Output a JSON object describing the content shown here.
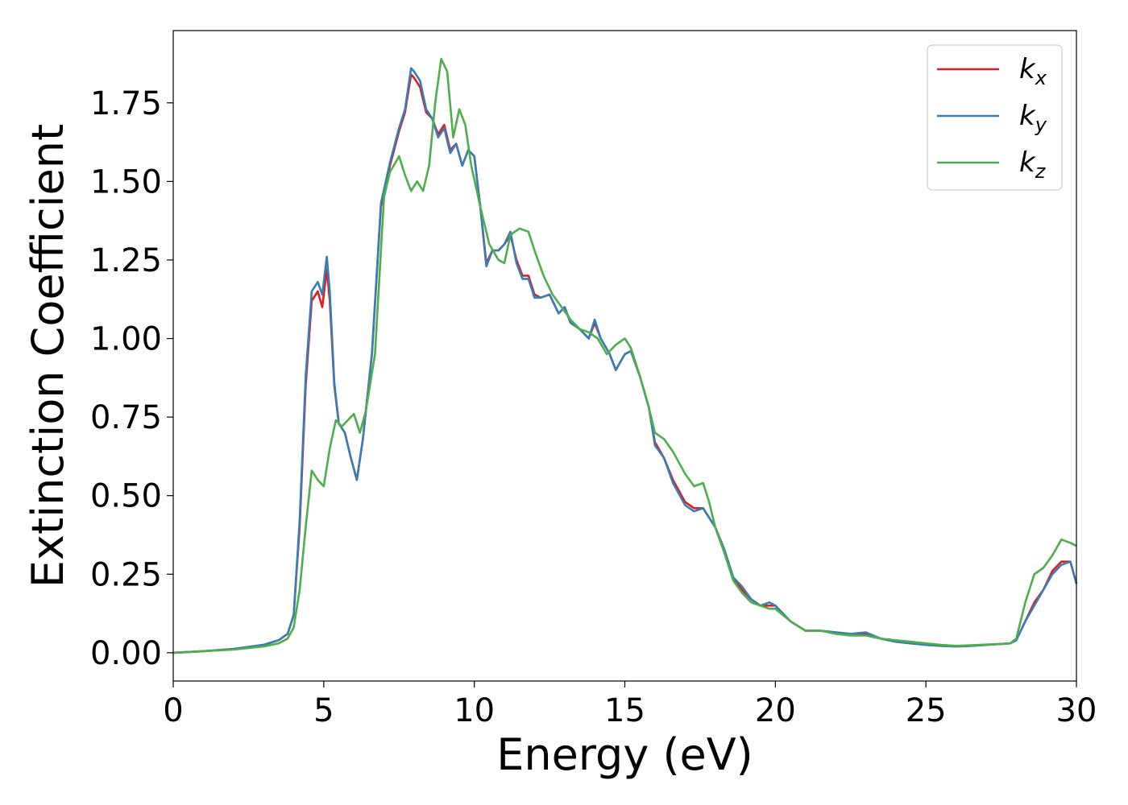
{
  "chart_data": {
    "type": "line",
    "xlabel": "Energy (eV)",
    "ylabel": "Extinction Coefficient",
    "xlim": [
      0,
      30
    ],
    "ylim": [
      -0.09,
      1.98
    ],
    "xticks": [
      "0",
      "5",
      "10",
      "15",
      "20",
      "25",
      "30"
    ],
    "yticks": [
      "0.00",
      "0.25",
      "0.50",
      "0.75",
      "1.00",
      "1.25",
      "1.50",
      "1.75"
    ],
    "grid": false,
    "legend_position": "top-right",
    "series": [
      {
        "name": "k_x",
        "label_main": "k",
        "label_sub": "x",
        "color": "#e41a1c",
        "x": [
          0,
          1,
          2,
          3,
          3.5,
          3.8,
          4.0,
          4.2,
          4.4,
          4.6,
          4.8,
          4.95,
          5.1,
          5.2,
          5.35,
          5.5,
          5.7,
          5.9,
          6.1,
          6.3,
          6.6,
          6.9,
          7.2,
          7.5,
          7.7,
          7.9,
          8.0,
          8.2,
          8.4,
          8.6,
          8.8,
          9.0,
          9.2,
          9.4,
          9.6,
          9.8,
          10.0,
          10.2,
          10.4,
          10.6,
          10.8,
          11.0,
          11.2,
          11.4,
          11.6,
          11.8,
          12.0,
          12.2,
          12.5,
          12.8,
          13.0,
          13.2,
          13.5,
          13.8,
          14.0,
          14.2,
          14.5,
          14.7,
          15.0,
          15.2,
          15.5,
          15.8,
          16.0,
          16.3,
          16.6,
          17.0,
          17.3,
          17.6,
          17.8,
          18.0,
          18.3,
          18.6,
          18.9,
          19.2,
          19.5,
          19.8,
          20.0,
          20.5,
          21.0,
          21.5,
          22.0,
          22.5,
          23.0,
          23.5,
          24.0,
          24.5,
          25.0,
          25.5,
          26.0,
          26.5,
          27.0,
          27.5,
          27.8,
          28.0,
          28.3,
          28.6,
          28.9,
          29.2,
          29.5,
          29.8,
          30.0
        ],
        "values": [
          0.0,
          0.005,
          0.012,
          0.025,
          0.04,
          0.06,
          0.12,
          0.4,
          0.85,
          1.12,
          1.15,
          1.1,
          1.22,
          1.12,
          0.85,
          0.73,
          0.7,
          0.62,
          0.55,
          0.68,
          0.95,
          1.42,
          1.55,
          1.66,
          1.72,
          1.84,
          1.83,
          1.8,
          1.72,
          1.7,
          1.65,
          1.68,
          1.6,
          1.62,
          1.55,
          1.6,
          1.58,
          1.42,
          1.24,
          1.28,
          1.28,
          1.3,
          1.33,
          1.25,
          1.2,
          1.2,
          1.14,
          1.13,
          1.14,
          1.08,
          1.1,
          1.05,
          1.03,
          1.0,
          1.05,
          1.0,
          0.95,
          0.9,
          0.95,
          0.96,
          0.88,
          0.78,
          0.67,
          0.62,
          0.55,
          0.48,
          0.46,
          0.46,
          0.43,
          0.4,
          0.33,
          0.24,
          0.2,
          0.17,
          0.15,
          0.15,
          0.15,
          0.1,
          0.07,
          0.07,
          0.065,
          0.06,
          0.06,
          0.045,
          0.035,
          0.03,
          0.025,
          0.022,
          0.02,
          0.022,
          0.025,
          0.028,
          0.03,
          0.04,
          0.1,
          0.16,
          0.2,
          0.26,
          0.29,
          0.29,
          0.22
        ]
      },
      {
        "name": "k_y",
        "label_main": "k",
        "label_sub": "y",
        "color": "#377eb8",
        "x": [
          0,
          1,
          2,
          3,
          3.5,
          3.8,
          4.0,
          4.2,
          4.4,
          4.6,
          4.8,
          4.95,
          5.1,
          5.2,
          5.35,
          5.5,
          5.7,
          5.9,
          6.1,
          6.3,
          6.6,
          6.9,
          7.2,
          7.5,
          7.7,
          7.9,
          8.0,
          8.2,
          8.4,
          8.6,
          8.8,
          9.0,
          9.2,
          9.4,
          9.6,
          9.8,
          10.0,
          10.2,
          10.4,
          10.6,
          10.8,
          11.0,
          11.2,
          11.4,
          11.6,
          11.8,
          12.0,
          12.2,
          12.5,
          12.8,
          13.0,
          13.2,
          13.5,
          13.8,
          14.0,
          14.2,
          14.5,
          14.7,
          15.0,
          15.2,
          15.5,
          15.8,
          16.0,
          16.3,
          16.6,
          17.0,
          17.3,
          17.6,
          17.8,
          18.0,
          18.3,
          18.6,
          18.9,
          19.2,
          19.5,
          19.8,
          20.0,
          20.5,
          21.0,
          21.5,
          22.0,
          22.5,
          23.0,
          23.5,
          24.0,
          24.5,
          25.0,
          25.5,
          26.0,
          26.5,
          27.0,
          27.5,
          27.8,
          28.0,
          28.3,
          28.6,
          28.9,
          29.2,
          29.5,
          29.8,
          30.0
        ],
        "values": [
          0.0,
          0.005,
          0.012,
          0.025,
          0.04,
          0.06,
          0.12,
          0.42,
          0.88,
          1.15,
          1.18,
          1.14,
          1.26,
          1.15,
          0.86,
          0.73,
          0.7,
          0.62,
          0.55,
          0.68,
          0.95,
          1.43,
          1.56,
          1.67,
          1.73,
          1.86,
          1.85,
          1.82,
          1.73,
          1.7,
          1.64,
          1.67,
          1.59,
          1.62,
          1.55,
          1.6,
          1.58,
          1.42,
          1.23,
          1.28,
          1.28,
          1.3,
          1.34,
          1.24,
          1.19,
          1.19,
          1.13,
          1.13,
          1.14,
          1.08,
          1.1,
          1.05,
          1.03,
          1.0,
          1.06,
          1.0,
          0.95,
          0.9,
          0.95,
          0.96,
          0.88,
          0.78,
          0.66,
          0.62,
          0.54,
          0.47,
          0.45,
          0.46,
          0.43,
          0.4,
          0.33,
          0.24,
          0.21,
          0.17,
          0.15,
          0.16,
          0.15,
          0.1,
          0.07,
          0.07,
          0.065,
          0.06,
          0.065,
          0.045,
          0.035,
          0.03,
          0.025,
          0.022,
          0.02,
          0.022,
          0.025,
          0.028,
          0.03,
          0.04,
          0.1,
          0.15,
          0.2,
          0.25,
          0.28,
          0.29,
          0.22
        ]
      },
      {
        "name": "k_z",
        "label_main": "k",
        "label_sub": "z",
        "color": "#4daf4a",
        "x": [
          0,
          1,
          2,
          3,
          3.5,
          3.8,
          4.0,
          4.2,
          4.4,
          4.6,
          4.8,
          5.0,
          5.2,
          5.4,
          5.6,
          5.8,
          6.0,
          6.2,
          6.4,
          6.7,
          7.0,
          7.2,
          7.5,
          7.7,
          7.9,
          8.1,
          8.3,
          8.5,
          8.7,
          8.9,
          9.1,
          9.3,
          9.5,
          9.7,
          9.9,
          10.2,
          10.5,
          10.8,
          11.0,
          11.2,
          11.5,
          11.8,
          12.0,
          12.3,
          12.6,
          12.9,
          13.2,
          13.5,
          13.8,
          14.1,
          14.4,
          14.7,
          15.0,
          15.2,
          15.5,
          15.8,
          16.0,
          16.3,
          16.6,
          17.0,
          17.3,
          17.6,
          17.8,
          18.0,
          18.3,
          18.6,
          18.9,
          19.2,
          19.5,
          19.8,
          20.0,
          20.5,
          21.0,
          21.5,
          22.0,
          22.5,
          23.0,
          23.5,
          24.0,
          24.5,
          25.0,
          25.5,
          26.0,
          26.5,
          27.0,
          27.5,
          27.8,
          28.0,
          28.3,
          28.6,
          28.9,
          29.2,
          29.5,
          29.8,
          30.0
        ],
        "values": [
          0.0,
          0.005,
          0.01,
          0.02,
          0.03,
          0.045,
          0.08,
          0.2,
          0.4,
          0.58,
          0.55,
          0.53,
          0.65,
          0.74,
          0.72,
          0.74,
          0.76,
          0.7,
          0.77,
          0.95,
          1.45,
          1.53,
          1.58,
          1.52,
          1.47,
          1.5,
          1.47,
          1.55,
          1.75,
          1.89,
          1.85,
          1.64,
          1.73,
          1.68,
          1.55,
          1.42,
          1.3,
          1.25,
          1.24,
          1.33,
          1.35,
          1.34,
          1.28,
          1.2,
          1.14,
          1.1,
          1.06,
          1.03,
          1.02,
          1.0,
          0.95,
          0.98,
          1.0,
          0.97,
          0.88,
          0.78,
          0.7,
          0.68,
          0.64,
          0.57,
          0.53,
          0.54,
          0.48,
          0.4,
          0.32,
          0.23,
          0.19,
          0.16,
          0.15,
          0.14,
          0.14,
          0.1,
          0.07,
          0.07,
          0.06,
          0.055,
          0.055,
          0.045,
          0.04,
          0.035,
          0.03,
          0.025,
          0.022,
          0.024,
          0.026,
          0.028,
          0.03,
          0.045,
          0.16,
          0.25,
          0.27,
          0.31,
          0.36,
          0.35,
          0.34
        ]
      }
    ]
  }
}
